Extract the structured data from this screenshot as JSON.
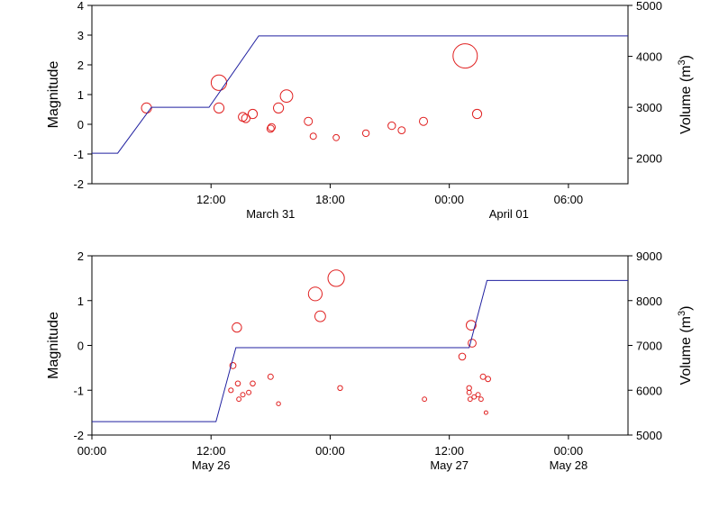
{
  "chart_data": [
    {
      "type": "scatter",
      "left_axis": {
        "label": "Magnitude",
        "range": [
          -2,
          4
        ],
        "ticks": [
          -2,
          -1,
          0,
          1,
          2,
          3,
          4
        ]
      },
      "right_axis": {
        "label": "Volume (m",
        "label_sup": "3",
        "label_end": ")",
        "range": [
          1500,
          5000
        ],
        "ticks": [
          2000,
          3000,
          4000,
          5000
        ]
      },
      "x_axis": {
        "range_hours": [
          6.0,
          33.0
        ],
        "time_ticks": [
          {
            "h": 12,
            "label": "12:00"
          },
          {
            "h": 18,
            "label": "18:00"
          },
          {
            "h": 24,
            "label": "00:00"
          },
          {
            "h": 30,
            "label": "06:00"
          }
        ],
        "date_labels": [
          {
            "h": 15,
            "label": "March 31"
          },
          {
            "h": 27,
            "label": "April 01"
          }
        ]
      },
      "series": [
        {
          "kind": "events",
          "color": "#e02020",
          "points": [
            {
              "t": 8.75,
              "m": 0.55
            },
            {
              "t": 12.4,
              "m": 1.4
            },
            {
              "t": 12.4,
              "m": 0.55
            },
            {
              "t": 13.6,
              "m": 0.25
            },
            {
              "t": 13.75,
              "m": 0.2
            },
            {
              "t": 14.1,
              "m": 0.35
            },
            {
              "t": 15.0,
              "m": -0.15
            },
            {
              "t": 15.05,
              "m": -0.1
            },
            {
              "t": 15.4,
              "m": 0.55
            },
            {
              "t": 15.8,
              "m": 0.95
            },
            {
              "t": 16.9,
              "m": 0.1
            },
            {
              "t": 17.15,
              "m": -0.4
            },
            {
              "t": 18.3,
              "m": -0.45
            },
            {
              "t": 19.8,
              "m": -0.3
            },
            {
              "t": 21.1,
              "m": -0.05
            },
            {
              "t": 21.6,
              "m": -0.2
            },
            {
              "t": 22.7,
              "m": 0.1
            },
            {
              "t": 24.8,
              "m": 2.3
            },
            {
              "t": 25.4,
              "m": 0.35
            }
          ]
        },
        {
          "kind": "volume",
          "color": "#2020a0",
          "points": [
            {
              "t": 6.0,
              "v": 2100
            },
            {
              "t": 7.3,
              "v": 2100
            },
            {
              "t": 9.0,
              "v": 3000
            },
            {
              "t": 11.9,
              "v": 3000
            },
            {
              "t": 14.4,
              "v": 4400
            },
            {
              "t": 33.0,
              "v": 4400
            }
          ]
        }
      ]
    },
    {
      "type": "scatter",
      "left_axis": {
        "label": "Magnitude",
        "range": [
          -2,
          2
        ],
        "ticks": [
          -2,
          -1,
          0,
          1,
          2
        ]
      },
      "right_axis": {
        "label": "Volume (m",
        "label_sup": "3",
        "label_end": ")",
        "range": [
          5000,
          9000
        ],
        "ticks": [
          5000,
          6000,
          7000,
          8000,
          9000
        ]
      },
      "x_axis": {
        "range_hours": [
          0,
          54
        ],
        "time_ticks": [
          {
            "h": 0,
            "label": "00:00"
          },
          {
            "h": 12,
            "label": "12:00"
          },
          {
            "h": 24,
            "label": "00:00"
          },
          {
            "h": 36,
            "label": "12:00"
          },
          {
            "h": 48,
            "label": "00:00"
          }
        ],
        "date_labels": [
          {
            "h": 12,
            "label": "May 26"
          },
          {
            "h": 36,
            "label": "May 27"
          },
          {
            "h": 48,
            "label": "May 28"
          }
        ]
      },
      "series": [
        {
          "kind": "events",
          "color": "#e02020",
          "points": [
            {
              "t": 14.0,
              "m": -1.0
            },
            {
              "t": 14.2,
              "m": -0.45
            },
            {
              "t": 14.6,
              "m": 0.4
            },
            {
              "t": 14.7,
              "m": -0.85
            },
            {
              "t": 14.8,
              "m": -1.2
            },
            {
              "t": 15.2,
              "m": -1.1
            },
            {
              "t": 15.8,
              "m": -1.05
            },
            {
              "t": 16.2,
              "m": -0.85
            },
            {
              "t": 18.0,
              "m": -0.7
            },
            {
              "t": 18.8,
              "m": -1.3
            },
            {
              "t": 22.5,
              "m": 1.15
            },
            {
              "t": 23.0,
              "m": 0.65
            },
            {
              "t": 24.6,
              "m": 1.5
            },
            {
              "t": 25.0,
              "m": -0.95
            },
            {
              "t": 33.5,
              "m": -1.2
            },
            {
              "t": 37.3,
              "m": -0.25
            },
            {
              "t": 38.2,
              "m": 0.45
            },
            {
              "t": 38.3,
              "m": 0.05
            },
            {
              "t": 38.0,
              "m": -0.95
            },
            {
              "t": 38.0,
              "m": -1.05
            },
            {
              "t": 38.1,
              "m": -1.2
            },
            {
              "t": 38.5,
              "m": -1.15
            },
            {
              "t": 38.9,
              "m": -1.1
            },
            {
              "t": 39.2,
              "m": -1.2
            },
            {
              "t": 39.4,
              "m": -0.7
            },
            {
              "t": 39.9,
              "m": -0.75
            },
            {
              "t": 39.7,
              "m": -1.5
            }
          ]
        },
        {
          "kind": "volume",
          "color": "#2020a0",
          "points": [
            {
              "t": 0,
              "v": 5300
            },
            {
              "t": 12.5,
              "v": 5300
            },
            {
              "t": 14.5,
              "v": 6950
            },
            {
              "t": 38.0,
              "v": 6950
            },
            {
              "t": 39.8,
              "v": 8450
            },
            {
              "t": 54,
              "v": 8450
            }
          ]
        }
      ]
    }
  ]
}
